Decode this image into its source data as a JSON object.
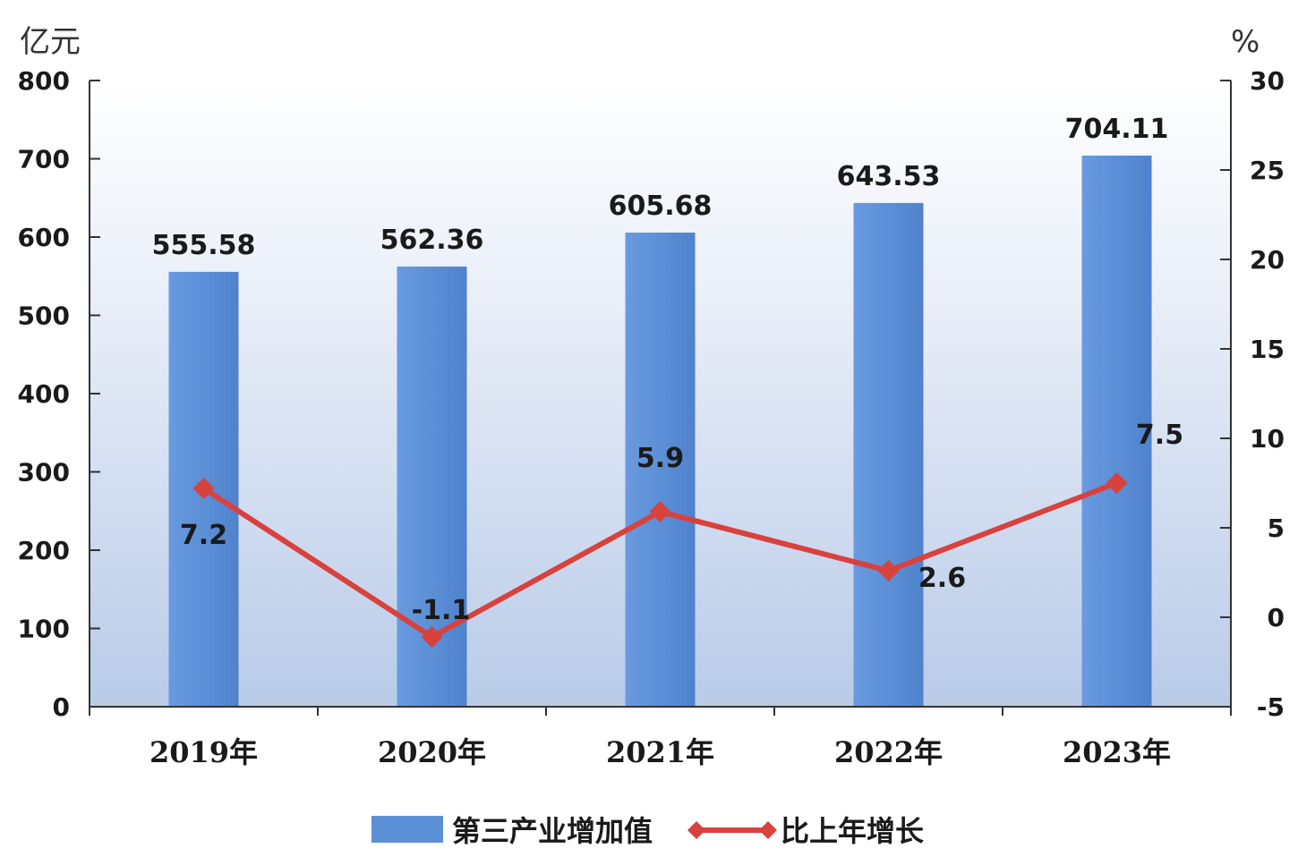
{
  "chart_data": {
    "type": "bar",
    "categories": [
      "2019年",
      "2020年",
      "2021年",
      "2022年",
      "2023年"
    ],
    "series": [
      {
        "name": "第三产业增加值",
        "type": "bar",
        "axis": "left",
        "values": [
          555.58,
          562.36,
          605.68,
          643.53,
          704.11
        ],
        "labels": [
          "555.58",
          "562.36",
          "605.68",
          "643.53",
          "704.11"
        ],
        "color": "#5b8fd6"
      },
      {
        "name": "比上年增长",
        "type": "line",
        "axis": "right",
        "values": [
          7.2,
          -1.1,
          5.9,
          2.6,
          7.5
        ],
        "labels": [
          "7.2",
          "-1.1",
          "5.9",
          "2.6",
          "7.5"
        ],
        "color": "#d9413d"
      }
    ],
    "left_axis": {
      "unit": "亿元",
      "range": [
        0,
        800
      ],
      "ticks": [
        "0",
        "100",
        "200",
        "300",
        "400",
        "500",
        "600",
        "700",
        "800"
      ]
    },
    "right_axis": {
      "unit": "%",
      "range": [
        -5,
        30
      ],
      "ticks": [
        "-5",
        "0",
        "5",
        "10",
        "15",
        "20",
        "25",
        "30"
      ]
    },
    "legend": {
      "position": "bottom",
      "items": [
        "第三产业增加值",
        "比上年增长"
      ]
    },
    "background": "gradient light blue",
    "grid": false
  }
}
